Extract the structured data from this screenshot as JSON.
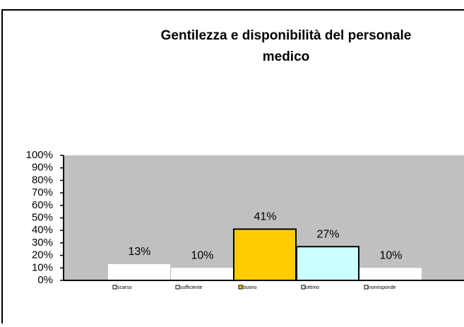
{
  "chart_data": {
    "type": "bar",
    "title": "Gentilezza e disponibilità del personale",
    "title_line2": "medico",
    "categories": [
      "scarso",
      "sufficiente",
      "buono",
      "ottimo",
      "nonrisponde"
    ],
    "values": [
      13,
      10,
      41,
      27,
      10
    ],
    "value_labels": [
      "13%",
      "10%",
      "41%",
      "27%",
      "10%"
    ],
    "colors": [
      "#ffffff",
      "#ffffff",
      "#ffcc00",
      "#ccffff",
      "#ffffff"
    ],
    "ylim": [
      0,
      100
    ],
    "yticks": [
      {
        "value": 0,
        "label": "0%"
      },
      {
        "value": 10,
        "label": "10%"
      },
      {
        "value": 20,
        "label": "20%"
      },
      {
        "value": 30,
        "label": "30%"
      },
      {
        "value": 40,
        "label": "40%"
      },
      {
        "value": 50,
        "label": "50%"
      },
      {
        "value": 60,
        "label": "60%"
      },
      {
        "value": 70,
        "label": "70%"
      },
      {
        "value": 80,
        "label": "80%"
      },
      {
        "value": 90,
        "label": "90%"
      },
      {
        "value": 100,
        "label": "100%"
      }
    ],
    "legend": "bottom"
  }
}
